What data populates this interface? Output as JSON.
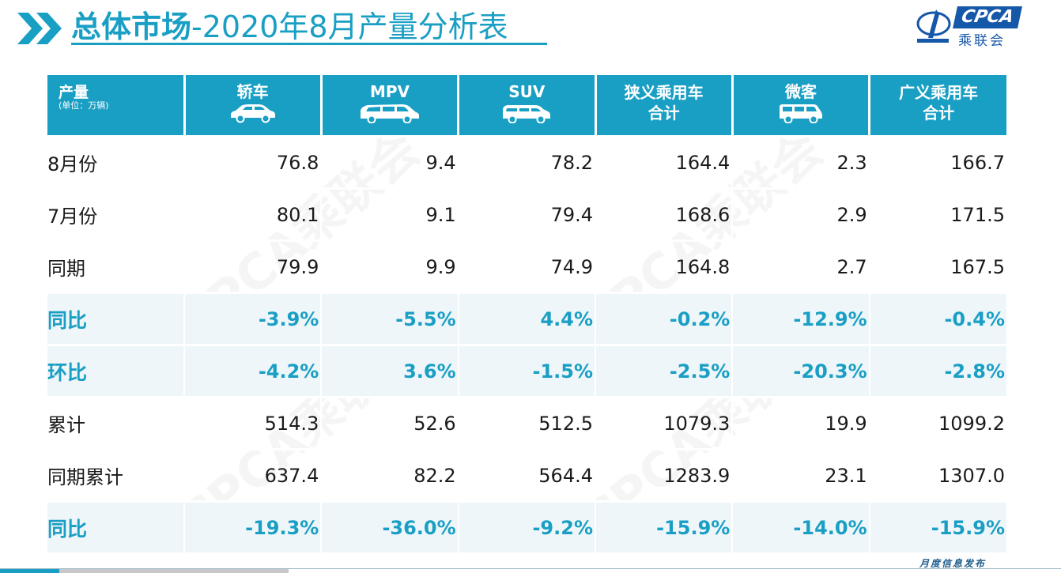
{
  "title": {
    "strong": "总体市场",
    "rest": "-2020年8月产量分析表"
  },
  "logo": {
    "brand": "CPCA",
    "brand_cn": "乘联会"
  },
  "watermark": "CPCA乘联会",
  "table": {
    "corner_main": "产量",
    "corner_sub": "(单位：万辆)",
    "columns": [
      {
        "l1": "轿车",
        "l2": "",
        "icon": "sedan-icon"
      },
      {
        "l1": "MPV",
        "l2": "",
        "icon": "mpv-icon"
      },
      {
        "l1": "SUV",
        "l2": "",
        "icon": "suv-icon"
      },
      {
        "l1": "狭义乘用车",
        "l2": "合计",
        "icon": ""
      },
      {
        "l1": "微客",
        "l2": "",
        "icon": "minivan-icon"
      },
      {
        "l1": "广义乘用车",
        "l2": "合计",
        "icon": ""
      }
    ],
    "rows": [
      {
        "label": "8月份",
        "values": [
          "76.8",
          "9.4",
          "78.2",
          "164.4",
          "2.3",
          "166.7"
        ],
        "pct": false
      },
      {
        "label": "7月份",
        "values": [
          "80.1",
          "9.1",
          "79.4",
          "168.6",
          "2.9",
          "171.5"
        ],
        "pct": false
      },
      {
        "label": "同期",
        "values": [
          "79.9",
          "9.9",
          "74.9",
          "164.8",
          "2.7",
          "167.5"
        ],
        "pct": false
      },
      {
        "label": "同比",
        "values": [
          "-3.9%",
          "-5.5%",
          "4.4%",
          "-0.2%",
          "-12.9%",
          "-0.4%"
        ],
        "pct": true
      },
      {
        "label": "环比",
        "values": [
          "-4.2%",
          "3.6%",
          "-1.5%",
          "-2.5%",
          "-20.3%",
          "-2.8%"
        ],
        "pct": true
      },
      {
        "label": "累计",
        "values": [
          "514.3",
          "52.6",
          "512.5",
          "1079.3",
          "19.9",
          "1099.2"
        ],
        "pct": false
      },
      {
        "label": "同期累计",
        "values": [
          "637.4",
          "82.2",
          "564.4",
          "1283.9",
          "23.1",
          "1307.0"
        ],
        "pct": false
      },
      {
        "label": "同比",
        "values": [
          "-19.3%",
          "-36.0%",
          "-9.2%",
          "-15.9%",
          "-14.0%",
          "-15.9%"
        ],
        "pct": true
      }
    ]
  },
  "footer": {
    "text": "月度信息发布"
  },
  "colors": {
    "accent": "#1a9fc4",
    "header_bg": "#1a9fc4",
    "pct_row_bg": "#eef6fa",
    "logo_blue": "#1557a8"
  }
}
